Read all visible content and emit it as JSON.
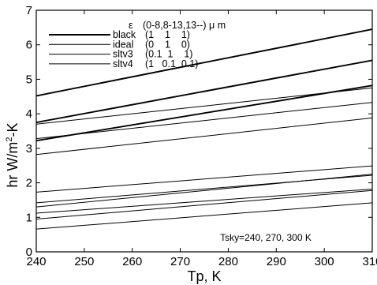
{
  "chart_data": {
    "type": "line",
    "title": "",
    "xlabel": "Tp, K",
    "ylabel_base": "hr  W/m",
    "ylabel_sup": "2",
    "ylabel_tail": "-K",
    "xlim": [
      240,
      310
    ],
    "ylim": [
      0,
      7
    ],
    "xticks": [
      "240",
      "250",
      "260",
      "270",
      "280",
      "290",
      "300",
      "310"
    ],
    "yticks": [
      "0",
      "1",
      "2",
      "3",
      "4",
      "5",
      "6",
      "7"
    ],
    "grid": false,
    "legend": {
      "placement": "top-left",
      "header_symbol": "ε",
      "header_text": "(0-8,8-13,13--) μ m",
      "entries": [
        {
          "name": "black",
          "values": "(1    1    1)"
        },
        {
          "name": "ideal",
          "values": "(0    1    0)"
        },
        {
          "name": "sltv3",
          "values": "(0.1  1    1)"
        },
        {
          "name": "sltv4",
          "values": "(1   0.1  0.1)"
        }
      ]
    },
    "annotation": "Tsky=240, 270, 300 K",
    "colors": {
      "lines": "#000000",
      "background": "#ffffff"
    },
    "series": [
      {
        "group": "black",
        "tsky": 300,
        "x": [
          240,
          310
        ],
        "y": [
          4.52,
          6.45
        ]
      },
      {
        "group": "black",
        "tsky": 270,
        "x": [
          240,
          310
        ],
        "y": [
          3.75,
          5.55
        ]
      },
      {
        "group": "black",
        "tsky": 240,
        "x": [
          240,
          310
        ],
        "y": [
          3.22,
          4.82
        ]
      },
      {
        "group": "ideal",
        "tsky": 300,
        "x": [
          240,
          310
        ],
        "y": [
          3.7,
          4.75
        ]
      },
      {
        "group": "ideal",
        "tsky": 270,
        "x": [
          240,
          310
        ],
        "y": [
          3.28,
          4.33
        ]
      },
      {
        "group": "ideal",
        "tsky": 240,
        "x": [
          240,
          310
        ],
        "y": [
          2.82,
          3.88
        ]
      },
      {
        "group": "sltv3",
        "tsky": 300,
        "x": [
          240,
          310
        ],
        "y": [
          1.73,
          2.49
        ]
      },
      {
        "group": "sltv3",
        "tsky": 270,
        "x": [
          240,
          310
        ],
        "y": [
          1.42,
          2.22
        ]
      },
      {
        "group": "sltv3",
        "tsky": 240,
        "x": [
          240,
          310
        ],
        "y": [
          1.12,
          1.82
        ]
      },
      {
        "group": "sltv4",
        "tsky": 300,
        "x": [
          240,
          310
        ],
        "y": [
          1.3,
          2.25
        ]
      },
      {
        "group": "sltv4",
        "tsky": 270,
        "x": [
          240,
          310
        ],
        "y": [
          0.95,
          1.78
        ]
      },
      {
        "group": "sltv4",
        "tsky": 240,
        "x": [
          240,
          310
        ],
        "y": [
          0.66,
          1.42
        ]
      }
    ]
  }
}
